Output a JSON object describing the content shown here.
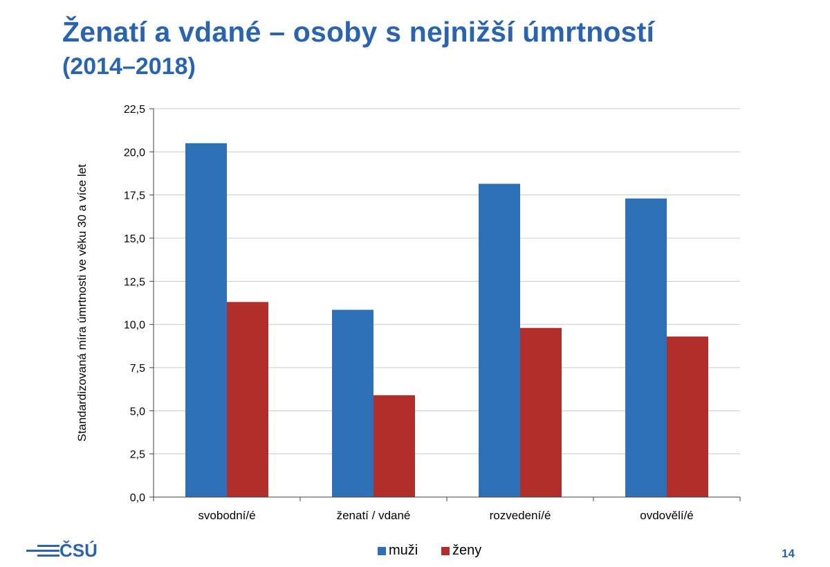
{
  "slide": {
    "title": "Ženatí a vdané – osoby s nejnižší úmrtností",
    "subtitle": "(2014–2018)",
    "page_number": "14",
    "logo_text": "ČSÚ"
  },
  "colors": {
    "title": "#2a64ae",
    "muzi": "#2e70b6",
    "zeny": "#b22e2a",
    "grid": "#c8c8c8",
    "axis": "#404040"
  },
  "chart_data": {
    "type": "bar",
    "categories": [
      "svobodní/é",
      "ženatí / vdané",
      "rozvedení/é",
      "ovdovělí/é"
    ],
    "series": [
      {
        "name": "muži",
        "values": [
          20.5,
          10.85,
          18.15,
          17.3
        ]
      },
      {
        "name": "ženy",
        "values": [
          11.3,
          5.9,
          9.8,
          9.3
        ]
      }
    ],
    "ylabel": "Standardizovaná míra úmrtnosti ve věku 30 a více let",
    "xlabel": "",
    "ylim": [
      0,
      22.5
    ],
    "yticks": [
      "0,0",
      "2,5",
      "5,0",
      "7,5",
      "10,0",
      "12,5",
      "15,0",
      "17,5",
      "20,0",
      "22,5"
    ],
    "grid": true,
    "legend_position": "bottom"
  }
}
